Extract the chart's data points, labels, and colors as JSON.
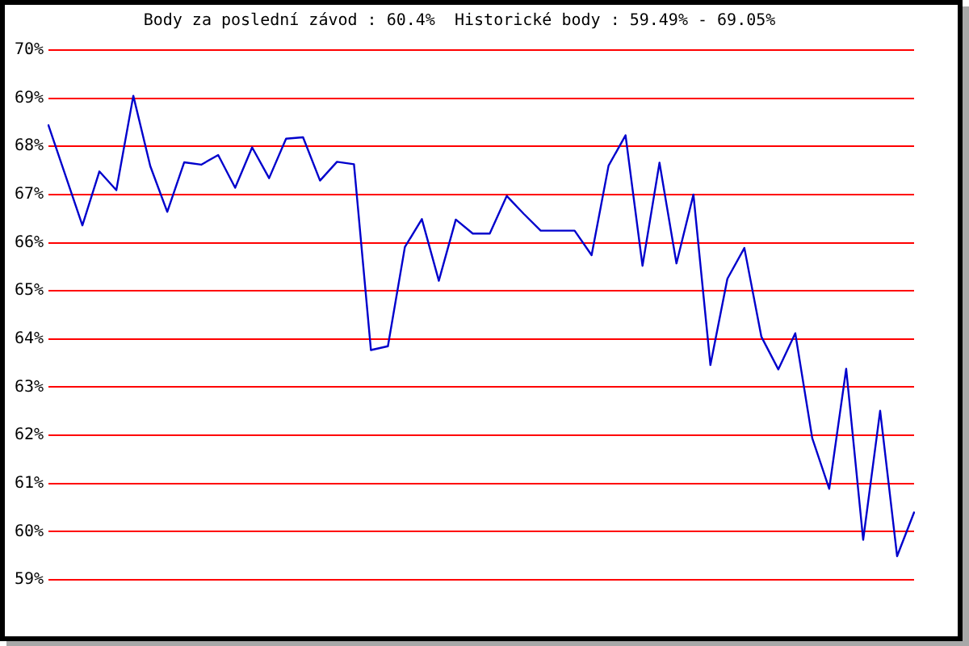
{
  "chart_data": {
    "type": "line",
    "title": "Body za poslední závod : 60.4%  Historické body : 59.49% - 69.05%",
    "categories": [
      null,
      null,
      null,
      null,
      null,
      null,
      null,
      null,
      null,
      null,
      null,
      null,
      null,
      null,
      null,
      null,
      null,
      null,
      null,
      null,
      null,
      null,
      null,
      null,
      null,
      null,
      null,
      null,
      null,
      null,
      null,
      null,
      null,
      null,
      null,
      null,
      null,
      null,
      null,
      null,
      null,
      null,
      null,
      null,
      null,
      null,
      null,
      null,
      null,
      null,
      null,
      null
    ],
    "series": [
      {
        "color": "#0000cc",
        "values": [
          68.44,
          67.4,
          66.36,
          67.48,
          67.09,
          69.05,
          67.59,
          66.64,
          67.67,
          67.62,
          67.82,
          67.14,
          67.98,
          67.34,
          68.16,
          68.19,
          67.29,
          67.68,
          67.63,
          63.77,
          63.85,
          65.91,
          66.49,
          65.21,
          66.48,
          66.19,
          66.19,
          66.97,
          66.6,
          66.25,
          66.25,
          66.25,
          65.74,
          67.6,
          68.23,
          65.52,
          67.66,
          65.57,
          67.0,
          63.46,
          65.25,
          65.89,
          64.05,
          63.37,
          64.12,
          61.94,
          60.89,
          63.38,
          59.83,
          62.51,
          59.49,
          60.4
        ]
      }
    ],
    "ylim": [
      59,
      70
    ],
    "yticks": [
      {
        "value": 59,
        "label": "59%"
      },
      {
        "value": 60,
        "label": "60%"
      },
      {
        "value": 61,
        "label": "61%"
      },
      {
        "value": 62,
        "label": "62%"
      },
      {
        "value": 63,
        "label": "63%"
      },
      {
        "value": 64,
        "label": "64%"
      },
      {
        "value": 65,
        "label": "65%"
      },
      {
        "value": 66,
        "label": "66%"
      },
      {
        "value": 67,
        "label": "67%"
      },
      {
        "value": 68,
        "label": "68%"
      },
      {
        "value": 69,
        "label": "69%"
      },
      {
        "value": 70,
        "label": "70%"
      }
    ],
    "grid": "y",
    "tick_labels": "y",
    "marker": "none",
    "line_style": "solid"
  }
}
